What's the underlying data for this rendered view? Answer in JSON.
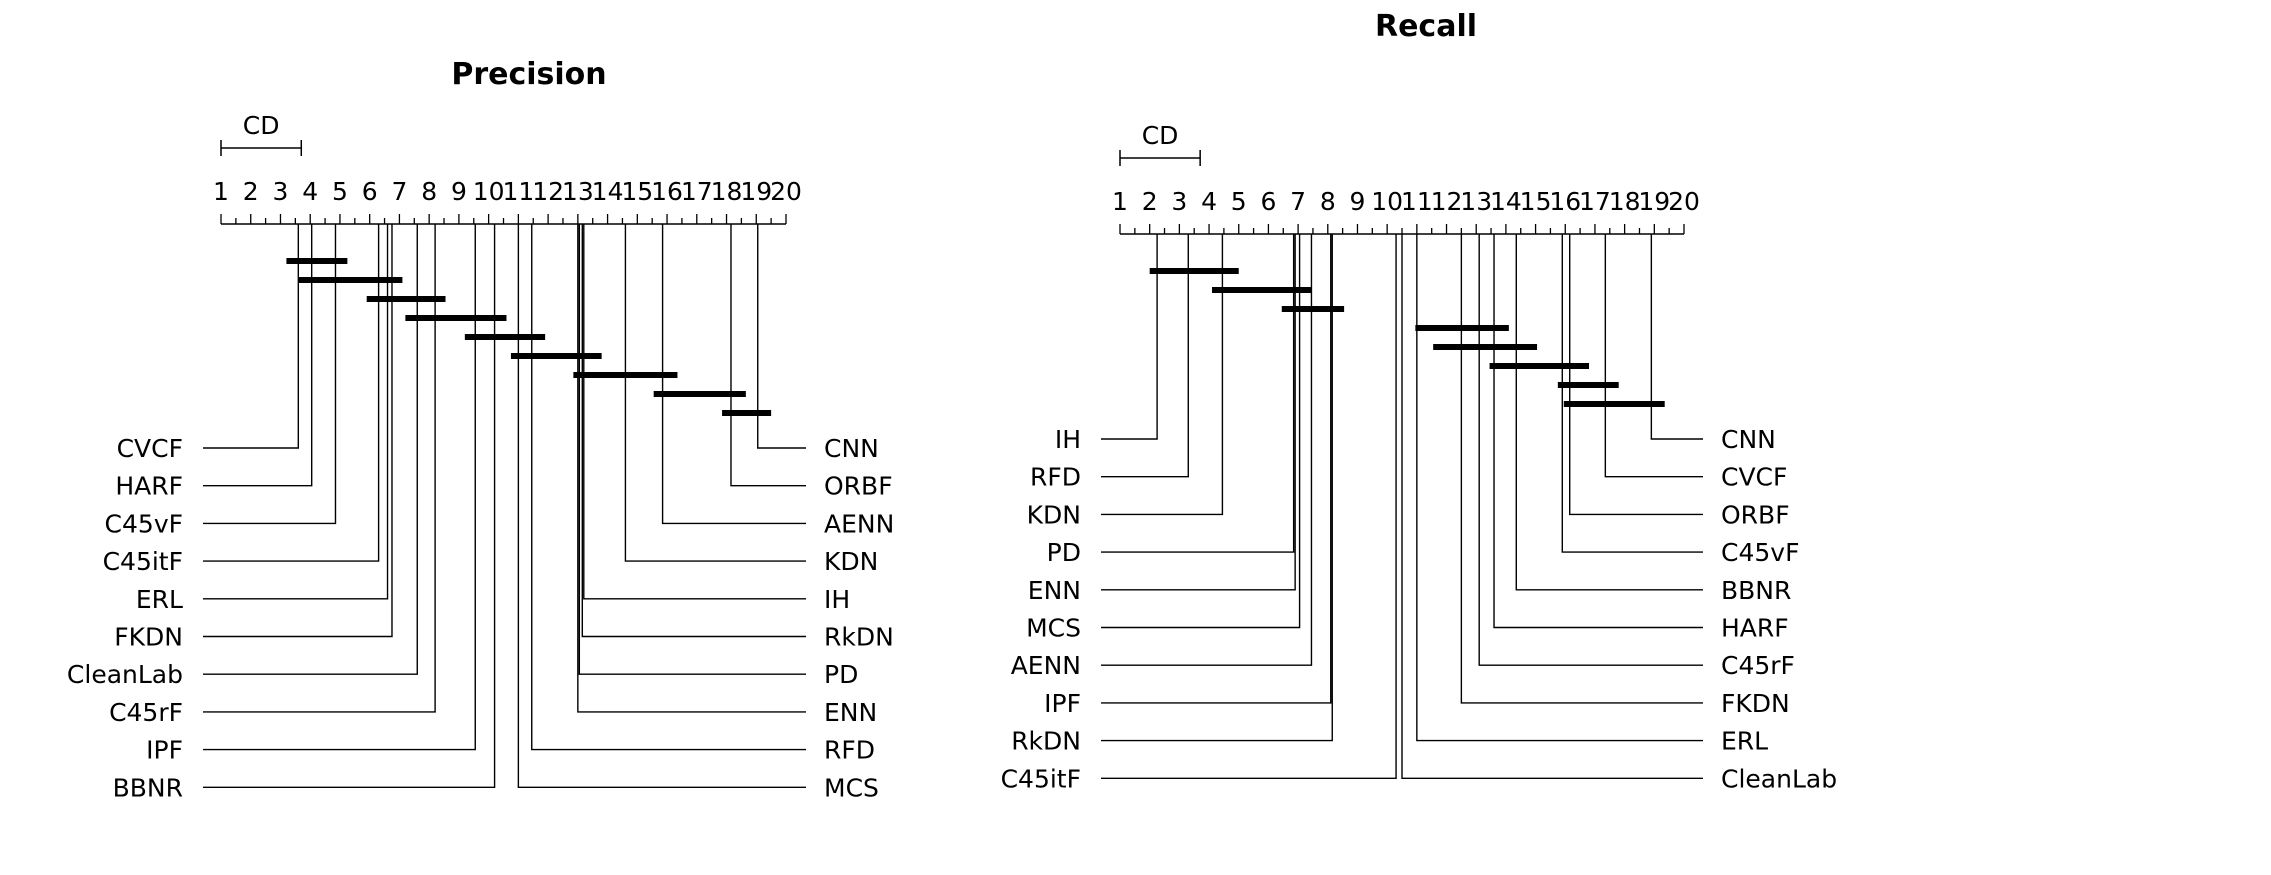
{
  "figure": {
    "type": "critical_difference_diagram",
    "line_color": "#000000"
  },
  "panels": [
    {
      "title": "Precision",
      "cd_label": "CD",
      "cd_value": 2.7,
      "axis_ticks": [
        "1",
        "2",
        "3",
        "4",
        "5",
        "6",
        "7",
        "8",
        "9",
        "10",
        "11",
        "12",
        "13",
        "14",
        "15",
        "16",
        "17",
        "18",
        "19",
        "20"
      ],
      "axis_range": [
        1,
        20
      ],
      "left_methods": [
        {
          "name": "CVCF",
          "rank": 3.6
        },
        {
          "name": "HARF",
          "rank": 4.05
        },
        {
          "name": "C45vF",
          "rank": 4.85
        },
        {
          "name": "C45itF",
          "rank": 6.3
        },
        {
          "name": "ERL",
          "rank": 6.6
        },
        {
          "name": "FKDN",
          "rank": 6.75
        },
        {
          "name": "CleanLab",
          "rank": 7.6
        },
        {
          "name": "C45rF",
          "rank": 8.2
        },
        {
          "name": "IPF",
          "rank": 9.55
        },
        {
          "name": "BBNR",
          "rank": 10.2
        }
      ],
      "right_methods": [
        {
          "name": "CNN",
          "rank": 19.05
        },
        {
          "name": "ORBF",
          "rank": 18.15
        },
        {
          "name": "AENN",
          "rank": 15.85
        },
        {
          "name": "KDN",
          "rank": 14.6
        },
        {
          "name": "IH",
          "rank": 13.2
        },
        {
          "name": "RkDN",
          "rank": 13.15
        },
        {
          "name": "PD",
          "rank": 13.05
        },
        {
          "name": "ENN",
          "rank": 13.0
        },
        {
          "name": "RFD",
          "rank": 11.45
        },
        {
          "name": "MCS",
          "rank": 11.0
        }
      ],
      "cliques": [
        [
          3.2,
          5.25
        ],
        [
          3.6,
          7.1
        ],
        [
          5.9,
          8.55
        ],
        [
          7.2,
          10.6
        ],
        [
          9.2,
          11.9
        ],
        [
          10.75,
          13.8
        ],
        [
          12.85,
          16.35
        ],
        [
          15.55,
          18.65
        ],
        [
          17.85,
          19.5
        ]
      ]
    },
    {
      "title": "Recall",
      "cd_label": "CD",
      "cd_value": 2.7,
      "axis_ticks": [
        "1",
        "2",
        "3",
        "4",
        "5",
        "6",
        "7",
        "8",
        "9",
        "10",
        "11",
        "12",
        "13",
        "14",
        "15",
        "16",
        "17",
        "18",
        "19",
        "20"
      ],
      "axis_range": [
        1,
        20
      ],
      "left_methods": [
        {
          "name": "IH",
          "rank": 2.25
        },
        {
          "name": "RFD",
          "rank": 3.3
        },
        {
          "name": "KDN",
          "rank": 4.45
        },
        {
          "name": "PD",
          "rank": 6.85
        },
        {
          "name": "ENN",
          "rank": 6.9
        },
        {
          "name": "MCS",
          "rank": 7.05
        },
        {
          "name": "AENN",
          "rank": 7.45
        },
        {
          "name": "IPF",
          "rank": 8.1
        },
        {
          "name": "RkDN",
          "rank": 8.15
        },
        {
          "name": "C45itF",
          "rank": 10.3
        }
      ],
      "right_methods": [
        {
          "name": "CNN",
          "rank": 18.9
        },
        {
          "name": "CVCF",
          "rank": 17.35
        },
        {
          "name": "ORBF",
          "rank": 16.15
        },
        {
          "name": "C45vF",
          "rank": 15.9
        },
        {
          "name": "BBNR",
          "rank": 14.35
        },
        {
          "name": "HARF",
          "rank": 13.6
        },
        {
          "name": "C45rF",
          "rank": 13.1
        },
        {
          "name": "FKDN",
          "rank": 12.5
        },
        {
          "name": "ERL",
          "rank": 11.0
        },
        {
          "name": "CleanLab",
          "rank": 10.5
        }
      ],
      "cliques": [
        [
          2.0,
          5.0
        ],
        [
          4.1,
          7.45
        ],
        [
          6.45,
          8.55
        ],
        [
          10.95,
          14.1
        ],
        [
          11.55,
          15.05
        ],
        [
          13.45,
          16.8
        ],
        [
          15.75,
          17.8
        ],
        [
          15.95,
          19.35
        ]
      ]
    }
  ]
}
